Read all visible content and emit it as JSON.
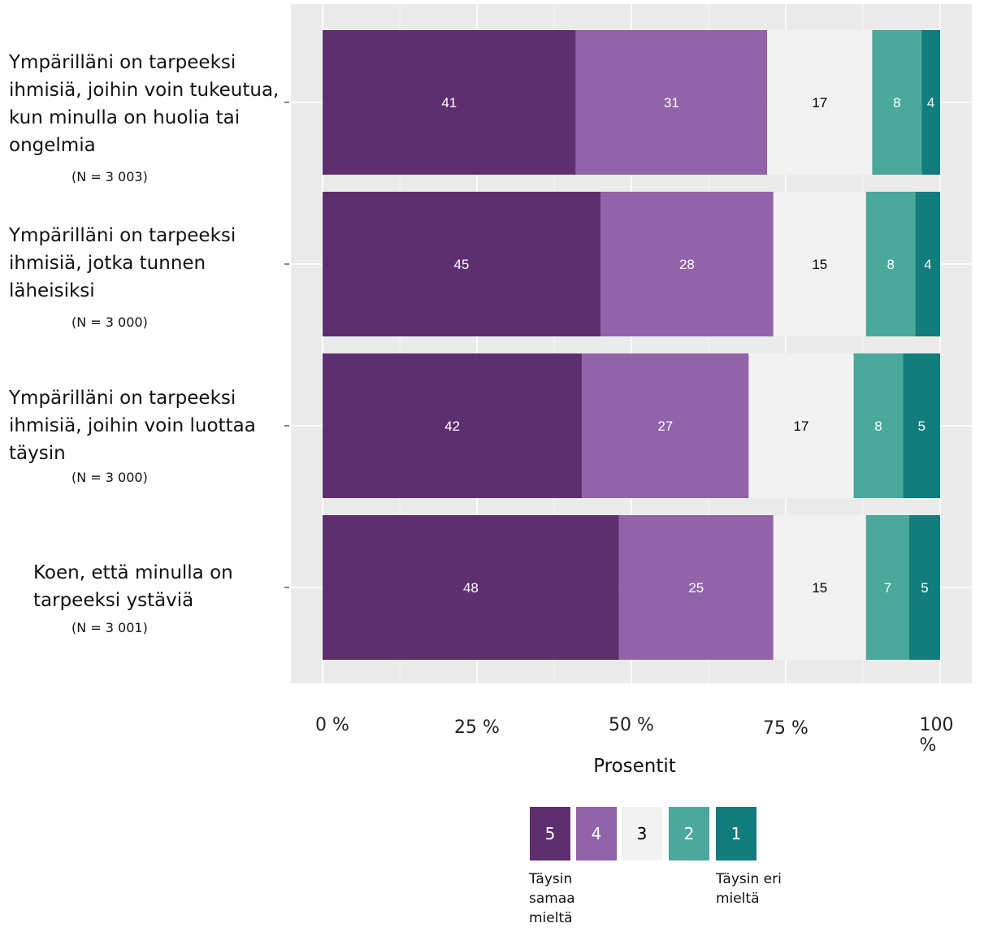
{
  "chart_data": {
    "type": "bar",
    "orientation": "horizontal",
    "stacked": true,
    "categories": [
      {
        "label": "Ympärilläni on tarpeeksi ihmisiä, joihin voin tukeutua, kun minulla on huolia tai ongelmia",
        "n": "(N = 3 003)"
      },
      {
        "label": "Ympärilläni on tarpeeksi ihmisiä, jotka tunnen läheisiksi",
        "n": "(N = 3 000)"
      },
      {
        "label": "Ympärilläni on tarpeeksi ihmisiä, joihin voin luottaa täysin",
        "n": "(N = 3 000)"
      },
      {
        "label": "Koen, että minulla on tarpeeksi ystäviä",
        "n": "(N = 3 001)"
      }
    ],
    "series": [
      {
        "name": "5",
        "color": "#5E2F6F",
        "text_color": "#ffffff",
        "values": [
          41,
          45,
          42,
          48
        ]
      },
      {
        "name": "4",
        "color": "#9163A8",
        "text_color": "#ffffff",
        "values": [
          31,
          28,
          27,
          25
        ]
      },
      {
        "name": "3",
        "color": "#F2F2F2",
        "text_color": "#000000",
        "values": [
          17,
          15,
          17,
          15
        ]
      },
      {
        "name": "2",
        "color": "#4AA99B",
        "text_color": "#ffffff",
        "values": [
          8,
          8,
          8,
          7
        ]
      },
      {
        "name": "1",
        "color": "#137C7C",
        "text_color": "#ffffff",
        "values": [
          4,
          4,
          5,
          5
        ]
      }
    ],
    "x_ticks": [
      "0 %",
      "25 %",
      "50 %",
      "75 %",
      "100 %"
    ],
    "xlim": [
      0,
      100
    ],
    "xlabel": "Prosentit",
    "grid": true,
    "panel_background": "#EBEBEB",
    "legend": {
      "position": "bottom",
      "left_note": "Täysin samaa mieltä",
      "right_note": "Täysin eri mieltä"
    }
  }
}
